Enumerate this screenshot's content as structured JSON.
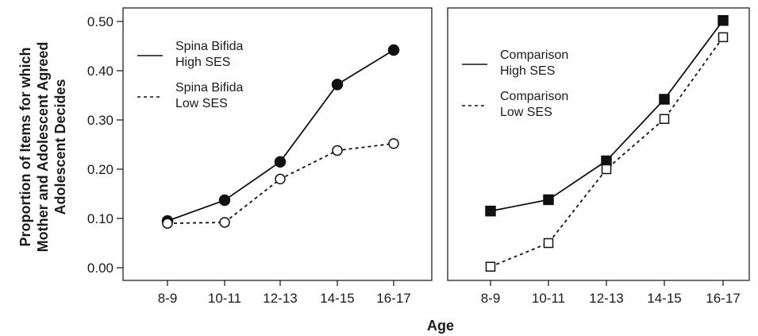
{
  "chart_data": [
    {
      "type": "line",
      "panel": "left",
      "marker": "circle",
      "categories": [
        "8-9",
        "10-11",
        "12-13",
        "14-15",
        "16-17"
      ],
      "ylim": [
        0,
        0.52
      ],
      "yticks": [
        "0.00",
        "0.10",
        "0.20",
        "0.30",
        "0.40",
        "0.50"
      ],
      "series": [
        {
          "name": "Spina Bifida High SES",
          "name_lines": [
            "Spina Bifida",
            "High SES"
          ],
          "style": "solid",
          "filled": true,
          "values": [
            0.095,
            0.137,
            0.215,
            0.372,
            0.442
          ]
        },
        {
          "name": "Spina Bifida Low SES",
          "name_lines": [
            "Spina Bifida",
            "Low SES"
          ],
          "style": "dashed",
          "filled": false,
          "values": [
            0.09,
            0.092,
            0.18,
            0.238,
            0.252
          ]
        }
      ],
      "legend_position": "top-left"
    },
    {
      "type": "line",
      "panel": "right",
      "marker": "square",
      "categories": [
        "8-9",
        "10-11",
        "12-13",
        "14-15",
        "16-17"
      ],
      "ylim": [
        0,
        0.52
      ],
      "series": [
        {
          "name": "Comparison High SES",
          "name_lines": [
            "Comparison",
            "High SES"
          ],
          "style": "solid",
          "filled": true,
          "values": [
            0.115,
            0.138,
            0.217,
            0.342,
            0.502
          ]
        },
        {
          "name": "Comparison Low SES",
          "name_lines": [
            "Comparison",
            "Low SES"
          ],
          "style": "dashed",
          "filled": false,
          "values": [
            0.002,
            0.05,
            0.2,
            0.302,
            0.468
          ]
        }
      ],
      "legend_position": "top-left"
    }
  ],
  "labels": {
    "xlabel": "Age",
    "ylabel_lines": [
      "Proportion of Items for which",
      "Mother and Adolescent Agreed",
      "Adolescent Decides"
    ]
  }
}
